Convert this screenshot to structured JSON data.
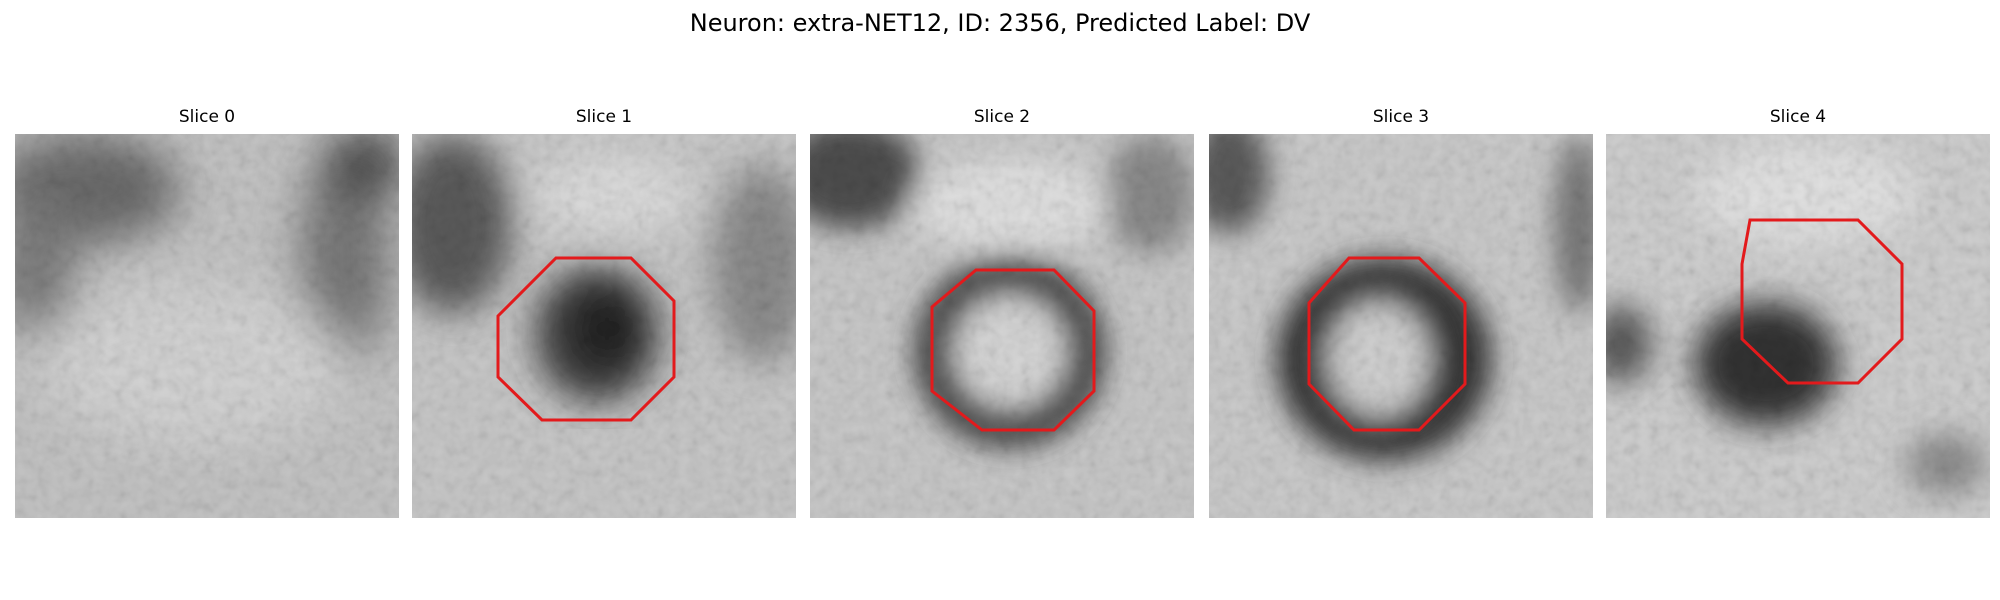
{
  "figure": {
    "title": "Neuron: extra-NET12, ID: 2356, Predicted Label: DV",
    "outline_color": "#e31a1c",
    "colormap": "gray",
    "slices": [
      {
        "label": "Slice 0"
      },
      {
        "label": "Slice 1"
      },
      {
        "label": "Slice 2"
      },
      {
        "label": "Slice 3"
      },
      {
        "label": "Slice 4"
      }
    ]
  }
}
